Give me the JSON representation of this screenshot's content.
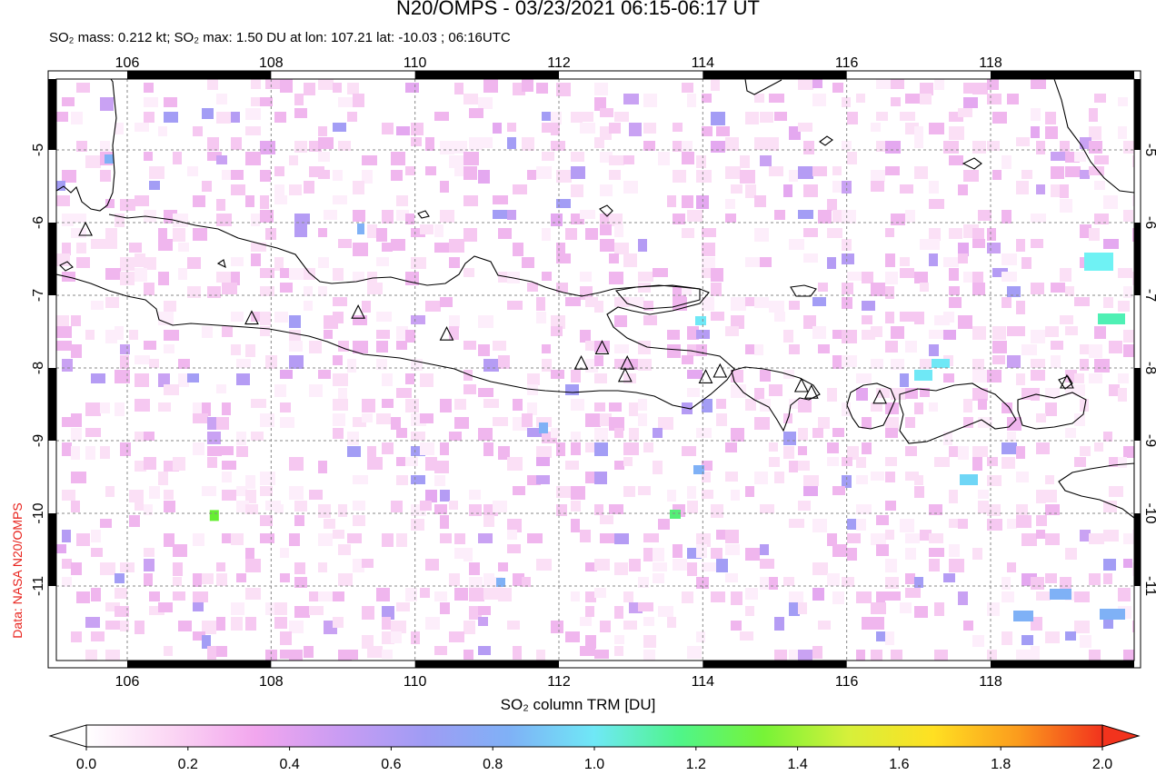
{
  "header": {
    "title": "N20/OMPS - 03/23/2021 06:15-06:17 UT",
    "subtitle": "SO₂ mass: 0.212 kt; SO₂ max: 1.50 DU at lon: 107.21 lat: -10.03 ; 06:16UTC"
  },
  "credit": "Data: NASA N20/OMPS",
  "map": {
    "lon_labels": [
      "106",
      "108",
      "110",
      "112",
      "114",
      "116",
      "118"
    ],
    "lat_labels": [
      "-5",
      "-6",
      "-7",
      "-8",
      "-9",
      "-10",
      "-11"
    ],
    "lon_range": [
      105,
      120
    ],
    "lat_range": [
      -12,
      -4
    ],
    "volcanoes": [
      {
        "lon": 105.42,
        "lat": -6.1
      },
      {
        "lon": 107.73,
        "lat": -7.32
      },
      {
        "lon": 109.21,
        "lat": -7.24
      },
      {
        "lon": 110.44,
        "lat": -7.54
      },
      {
        "lon": 112.31,
        "lat": -7.94
      },
      {
        "lon": 112.6,
        "lat": -7.73
      },
      {
        "lon": 112.95,
        "lat": -7.94
      },
      {
        "lon": 112.92,
        "lat": -8.11
      },
      {
        "lon": 114.04,
        "lat": -8.13
      },
      {
        "lon": 114.24,
        "lat": -8.05
      },
      {
        "lon": 115.37,
        "lat": -8.25
      },
      {
        "lon": 115.51,
        "lat": -8.34
      },
      {
        "lon": 116.46,
        "lat": -8.41
      },
      {
        "lon": 119.06,
        "lat": -8.2
      }
    ],
    "max_so2_point": {
      "lon": 107.21,
      "lat": -10.03,
      "value": 1.5
    }
  },
  "colorbar": {
    "title": "SO₂ column TRM [DU]",
    "ticks": [
      "0.0",
      "0.2",
      "0.4",
      "0.6",
      "0.8",
      "1.0",
      "1.2",
      "1.4",
      "1.6",
      "1.8",
      "2.0"
    ],
    "range": [
      0,
      2
    ],
    "colors": [
      "#ffffff",
      "#fbd6f4",
      "#f2a6ee",
      "#c99cf3",
      "#9f9cf4",
      "#7fb1f6",
      "#6fe8f6",
      "#4ff58a",
      "#77f337",
      "#d6f03a",
      "#ffe022",
      "#fb9c1d",
      "#f2331d"
    ]
  }
}
